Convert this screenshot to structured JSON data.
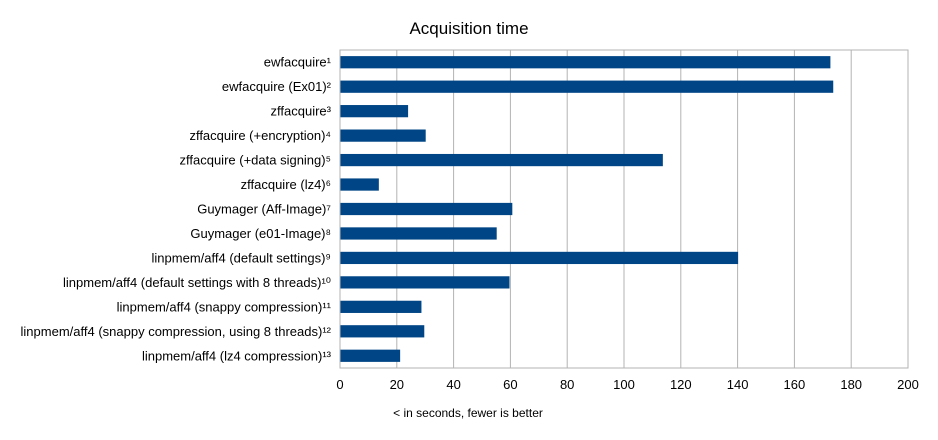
{
  "chart_data": {
    "type": "bar",
    "orientation": "horizontal",
    "title": "Acquisition time",
    "xlabel": "< in seconds, fewer is better",
    "ylabel": "",
    "xlim": [
      0,
      200
    ],
    "x_ticks": [
      "0",
      "20",
      "40",
      "60",
      "80",
      "100",
      "120",
      "140",
      "160",
      "180",
      "200"
    ],
    "grid": true,
    "legend": "none",
    "bar_color": "#004586",
    "categories": [
      "ewfacquire¹",
      "ewfacquire (Ex01)²",
      "zffacquire³",
      "zffacquire (+encryption)⁴",
      "zffacquire (+data signing)⁵",
      "zffacquire (lz4)⁶",
      "Guymager (Aff-Image)⁷",
      "Guymager (e01-Image)⁸",
      "linpmem/aff4 (default settings)⁹",
      "linpmem/aff4 (default settings with 8 threads)¹⁰",
      "linpmem/aff4 (snappy compression)¹¹",
      "linpmem/aff4 (snappy compression, using 8 threads)¹²",
      "linpmem/aff4 (lz4 compression)¹³"
    ],
    "values": [
      172.5,
      173.5,
      23.8,
      30.0,
      113.5,
      13.5,
      60.5,
      55.0,
      140.0,
      59.5,
      28.5,
      29.5,
      21.0
    ]
  }
}
